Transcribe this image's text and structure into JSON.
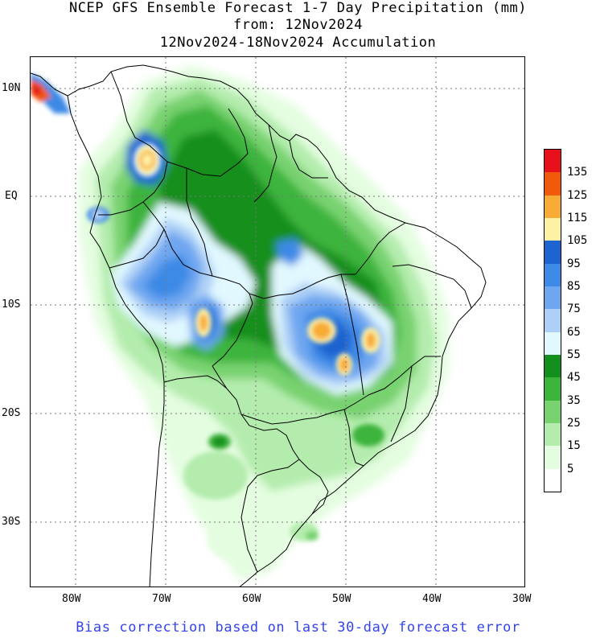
{
  "title": {
    "line1": "NCEP GFS Ensemble Forecast 1-7 Day Precipitation (mm)",
    "line2": "from: 12Nov2024",
    "line3": "12Nov2024-18Nov2024 Accumulation"
  },
  "footer": "Bias correction based on last 30-day forecast error",
  "axes": {
    "lat_labels": [
      "10N",
      "EQ",
      "10S",
      "20S",
      "30S"
    ],
    "lon_labels": [
      "80W",
      "70W",
      "60W",
      "50W",
      "40W",
      "30W"
    ],
    "lat_range": [
      -36.5,
      13
    ],
    "lon_range": [
      -85,
      -30
    ],
    "gridlines": "dotted"
  },
  "legend": {
    "labels": [
      "135",
      "125",
      "115",
      "105",
      "95",
      "85",
      "75",
      "65",
      "55",
      "45",
      "35",
      "25",
      "15",
      "5"
    ],
    "colors": [
      "#e8101a",
      "#f05a0a",
      "#f8ac36",
      "#fdf1a6",
      "#1e64d0",
      "#3c8ae6",
      "#6ea6f0",
      "#aed0f6",
      "#e1f8ff",
      "#138f1e",
      "#3cb43c",
      "#78d270",
      "#b4ecad",
      "#e4fde0",
      "#ffffff"
    ]
  },
  "colors": {
    "footer_text": "#3344ee",
    "border_lines": "#000000"
  }
}
